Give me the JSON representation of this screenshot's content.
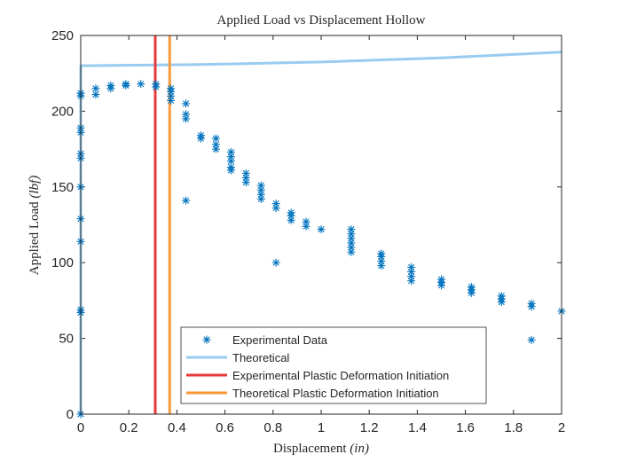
{
  "chart_data": {
    "type": "scatter",
    "title": "Applied Load vs Displacement Hollow",
    "xlabel_text": "Displacement ",
    "xlabel_unit": "(in)",
    "ylabel_text": "Applied Load ",
    "ylabel_unit": "(lbf)",
    "xlim": [
      0,
      2
    ],
    "ylim": [
      0,
      250
    ],
    "xticks": [
      0,
      0.2,
      0.4,
      0.6,
      0.8,
      1,
      1.2,
      1.4,
      1.6,
      1.8,
      2
    ],
    "yticks": [
      0,
      50,
      100,
      150,
      200,
      250
    ],
    "grid": false,
    "legend_position": "bottom-center",
    "colors": {
      "experimental": "#0072bd",
      "theoretical": "#99ccf0",
      "exp_plastic": "#e83a3a",
      "theo_plastic": "#f7983a"
    },
    "series": [
      {
        "name": "Experimental Data",
        "kind": "scatter",
        "marker": "asterisk",
        "points": [
          [
            0,
            0
          ],
          [
            0,
            67
          ],
          [
            0,
            69
          ],
          [
            0,
            114
          ],
          [
            0,
            129
          ],
          [
            0,
            150
          ],
          [
            0,
            169
          ],
          [
            0,
            172
          ],
          [
            0,
            186
          ],
          [
            0,
            189
          ],
          [
            0,
            210
          ],
          [
            0,
            212
          ],
          [
            0.0625,
            211
          ],
          [
            0.0625,
            215
          ],
          [
            0.125,
            215
          ],
          [
            0.125,
            217
          ],
          [
            0.1875,
            217
          ],
          [
            0.1875,
            218
          ],
          [
            0.25,
            218
          ],
          [
            0.3125,
            216
          ],
          [
            0.3125,
            218
          ],
          [
            0.375,
            207
          ],
          [
            0.375,
            210
          ],
          [
            0.375,
            213
          ],
          [
            0.375,
            215
          ],
          [
            0.4375,
            141
          ],
          [
            0.4375,
            195
          ],
          [
            0.4375,
            198
          ],
          [
            0.4375,
            205
          ],
          [
            0.5,
            182
          ],
          [
            0.5,
            184
          ],
          [
            0.5625,
            175
          ],
          [
            0.5625,
            178
          ],
          [
            0.5625,
            182
          ],
          [
            0.625,
            161
          ],
          [
            0.625,
            163
          ],
          [
            0.625,
            167
          ],
          [
            0.625,
            170
          ],
          [
            0.625,
            173
          ],
          [
            0.6875,
            153
          ],
          [
            0.6875,
            156
          ],
          [
            0.6875,
            159
          ],
          [
            0.75,
            142
          ],
          [
            0.75,
            145
          ],
          [
            0.75,
            148
          ],
          [
            0.75,
            151
          ],
          [
            0.8125,
            100
          ],
          [
            0.8125,
            136
          ],
          [
            0.8125,
            139
          ],
          [
            0.875,
            128
          ],
          [
            0.875,
            131
          ],
          [
            0.875,
            133
          ],
          [
            0.9375,
            124
          ],
          [
            0.9375,
            127
          ],
          [
            1,
            122
          ],
          [
            1.125,
            107
          ],
          [
            1.125,
            110
          ],
          [
            1.125,
            113
          ],
          [
            1.125,
            116
          ],
          [
            1.125,
            119
          ],
          [
            1.125,
            122
          ],
          [
            1.25,
            98
          ],
          [
            1.25,
            101
          ],
          [
            1.25,
            104
          ],
          [
            1.25,
            106
          ],
          [
            1.375,
            88
          ],
          [
            1.375,
            91
          ],
          [
            1.375,
            94
          ],
          [
            1.375,
            97
          ],
          [
            1.5,
            85
          ],
          [
            1.5,
            87
          ],
          [
            1.5,
            89
          ],
          [
            1.625,
            80
          ],
          [
            1.625,
            82
          ],
          [
            1.625,
            84
          ],
          [
            1.75,
            74
          ],
          [
            1.75,
            76
          ],
          [
            1.75,
            78
          ],
          [
            1.875,
            49
          ],
          [
            1.875,
            71
          ],
          [
            1.875,
            73
          ],
          [
            2,
            68
          ]
        ]
      },
      {
        "name": "Theoretical",
        "kind": "line",
        "points": [
          [
            0,
            0
          ],
          [
            0,
            230
          ],
          [
            0.5,
            230.8
          ],
          [
            1,
            232.5
          ],
          [
            1.5,
            235.2
          ],
          [
            2,
            239
          ]
        ]
      },
      {
        "name": "Experimental Plastic Deformation Initiation",
        "kind": "vline",
        "x": 0.31
      },
      {
        "name": "Theoretical Plastic Deformation Initiation",
        "kind": "vline",
        "x": 0.37
      }
    ]
  }
}
